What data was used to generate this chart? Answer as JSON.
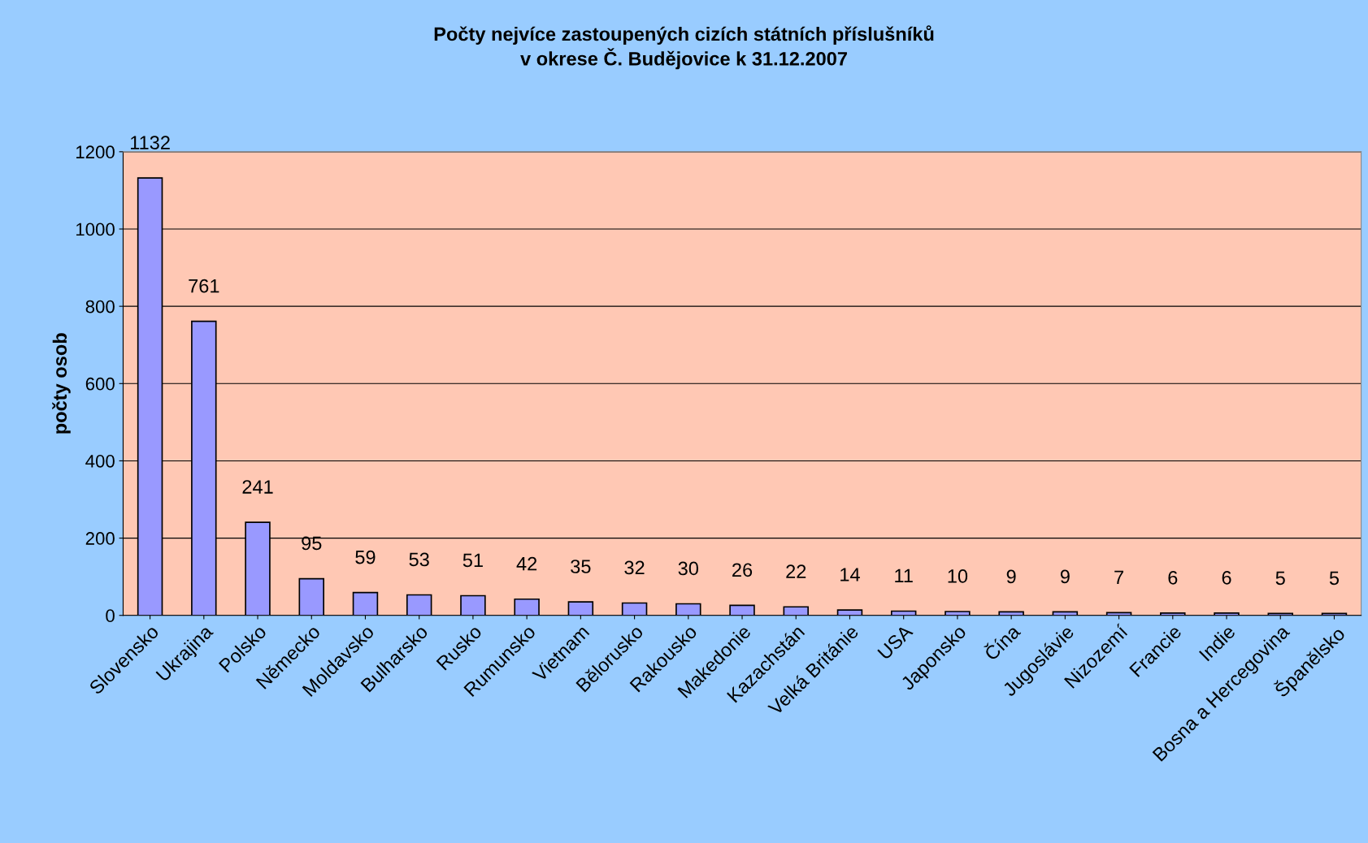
{
  "chart_data": {
    "type": "bar",
    "title": "Počty nejvíce zastoupených cizích státních příslušníků\nv okrese Č. Budějovice k 31.12.2007",
    "ylabel": "počty osob",
    "categories": [
      "Slovensko",
      "Ukrajina",
      "Polsko",
      "Německo",
      "Moldavsko",
      "Bulharsko",
      "Rusko",
      "Rumunsko",
      "Vietnam",
      "Bělorusko",
      "Rakousko",
      "Makedonie",
      "Kazachstán",
      "Velká Británie",
      "USA",
      "Japonsko",
      "Čína",
      "Jugoslávie",
      "Nizozemí",
      "Francie",
      "Indie",
      "Bosna a Hercegovina",
      "Španělsko"
    ],
    "values": [
      1132,
      761,
      241,
      95,
      59,
      53,
      51,
      42,
      35,
      32,
      30,
      26,
      22,
      14,
      11,
      10,
      9,
      9,
      7,
      6,
      6,
      5,
      5
    ],
    "color": "#9999ff",
    "ylim": [
      0,
      1200
    ],
    "yticks": [
      0,
      200,
      400,
      600,
      800,
      1000,
      1200
    ],
    "grid": "y",
    "data_labels": true,
    "legend": false
  }
}
